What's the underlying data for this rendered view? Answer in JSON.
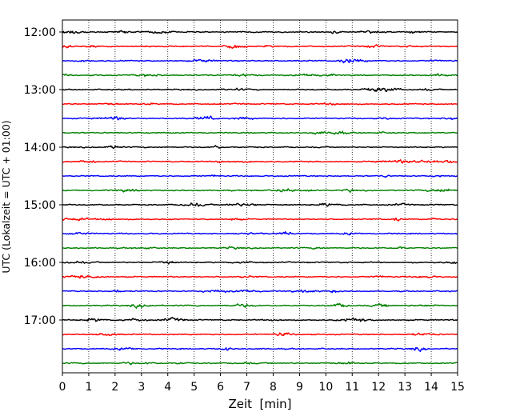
{
  "chart_data": {
    "type": "line",
    "chart_kind": "helicorder",
    "title": "",
    "xlabel": "Zeit  [min]",
    "ylabel": "UTC (Lokalzeit = UTC + 01:00)",
    "xlim": [
      0,
      15
    ],
    "x_ticks": [
      0,
      1,
      2,
      3,
      4,
      5,
      6,
      7,
      8,
      9,
      10,
      11,
      12,
      13,
      14,
      15
    ],
    "x_tick_labels": [
      "0",
      "1",
      "2",
      "3",
      "4",
      "5",
      "6",
      "7",
      "8",
      "9",
      "10",
      "11",
      "12",
      "13",
      "14",
      "15"
    ],
    "y_axis_direction": "time increases downward",
    "y_ticks": [
      "12:00",
      "13:00",
      "14:00",
      "15:00",
      "16:00",
      "17:00"
    ],
    "trace_interval_min": 15,
    "trace_start_times": [
      "12:00",
      "12:15",
      "12:30",
      "12:45",
      "13:00",
      "13:15",
      "13:30",
      "13:45",
      "14:00",
      "14:15",
      "14:30",
      "14:45",
      "15:00",
      "15:15",
      "15:30",
      "15:45",
      "16:00",
      "16:15",
      "16:30",
      "16:45",
      "17:00",
      "17:15",
      "17:30",
      "17:45"
    ],
    "trace_colors": [
      "#000000",
      "#ff0000",
      "#0000ff",
      "#008000"
    ],
    "grid": "vertical dotted lines at each minute",
    "legend": "none"
  }
}
